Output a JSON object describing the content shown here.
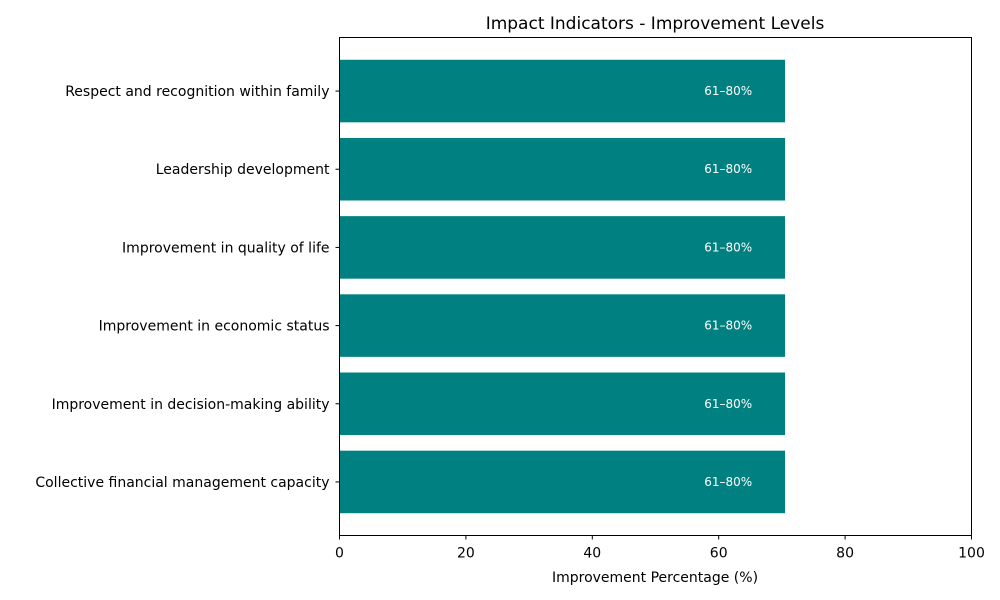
{
  "chart_data": {
    "type": "bar",
    "orientation": "horizontal",
    "title": "Impact Indicators - Improvement Levels",
    "xlabel": "Improvement Percentage (%)",
    "ylabel": "",
    "xlim": [
      0,
      100
    ],
    "xticks": [
      0,
      20,
      40,
      60,
      80,
      100
    ],
    "grid": false,
    "bar_color": "#008080",
    "label_color": "#ffffff",
    "categories": [
      "Collective financial management capacity",
      "Improvement in decision-making ability",
      "Improvement in economic status",
      "Improvement in quality of life",
      "Leadership development",
      "Respect and recognition within family"
    ],
    "values": [
      70.5,
      70.5,
      70.5,
      70.5,
      70.5,
      70.5
    ],
    "data_labels": [
      "61–80%",
      "61–80%",
      "61–80%",
      "61–80%",
      "61–80%",
      "61–80%"
    ]
  }
}
